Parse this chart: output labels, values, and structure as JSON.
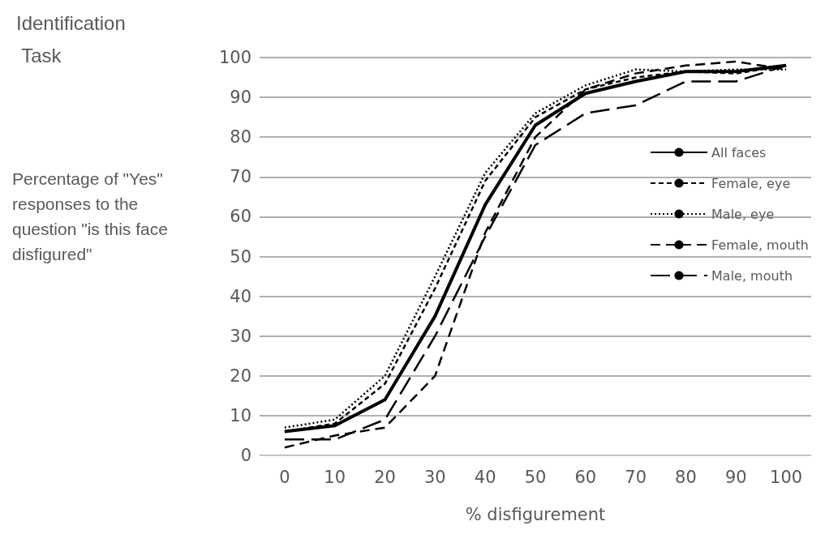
{
  "chart_data": {
    "type": "line",
    "title": "Identification Task",
    "xlabel": "% disfigurement",
    "ylabel": "Percentage of \"Yes\" responses to the question \"is this face disfigured\"",
    "categories": [
      "0",
      "10",
      "20",
      "30",
      "40",
      "50",
      "60",
      "70",
      "80",
      "90",
      "100"
    ],
    "series": [
      {
        "name": "All faces",
        "color": "#000000",
        "line_style": "solid",
        "values": [
          6,
          7.5,
          14,
          35,
          63,
          83,
          91,
          94,
          96.5,
          96.5,
          98
        ]
      },
      {
        "name": "Female, eye",
        "color": "#000000",
        "line_style": "dashed",
        "values": [
          6,
          8,
          18,
          42,
          69,
          85,
          92,
          95,
          96.5,
          96,
          98
        ]
      },
      {
        "name": "Male, eye",
        "color": "#000000",
        "line_style": "dotted",
        "values": [
          7,
          9,
          20,
          45,
          71,
          86,
          93,
          97,
          96.5,
          97,
          97
        ]
      },
      {
        "name": "Female, mouth",
        "color": "#000000",
        "line_style": "dashed",
        "values": [
          2,
          5,
          7,
          20,
          56,
          80,
          92,
          96,
          98,
          99,
          97
        ]
      },
      {
        "name": "Male, mouth",
        "color": "#000000",
        "line_style": "dashed",
        "values": [
          4,
          4,
          9,
          30,
          55,
          78,
          86,
          88,
          94,
          94,
          98
        ]
      }
    ],
    "ylim": [
      0,
      100
    ],
    "yticks": [
      0,
      10,
      20,
      30,
      40,
      50,
      60,
      70,
      80,
      90,
      100
    ],
    "grid": "y",
    "legend": "right",
    "marker": "none"
  }
}
